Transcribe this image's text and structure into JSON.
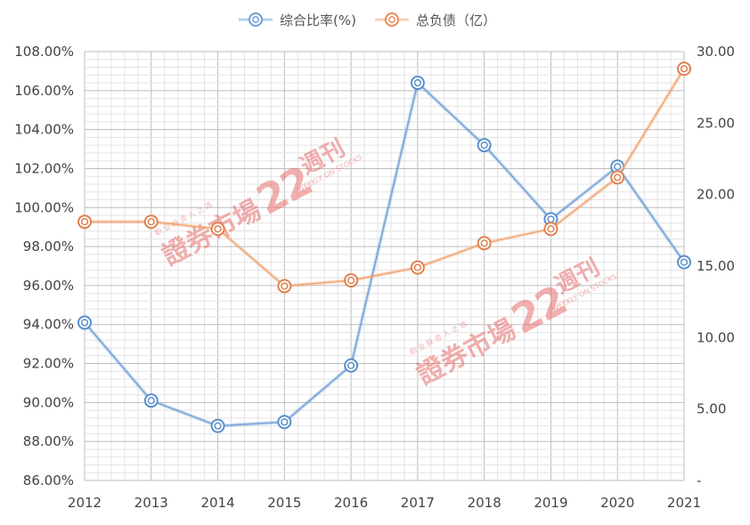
{
  "chart_data": {
    "type": "line",
    "categories": [
      "2012",
      "2013",
      "2014",
      "2015",
      "2016",
      "2017",
      "2018",
      "2019",
      "2020",
      "2021"
    ],
    "series": [
      {
        "name": "综合比率(%)",
        "axis": "left",
        "color": "#6e9fd6",
        "values": [
          94.1,
          90.1,
          88.8,
          89.0,
          91.9,
          106.4,
          103.2,
          99.4,
          102.1,
          97.2
        ]
      },
      {
        "name": "总负债（亿）",
        "axis": "right",
        "color": "#f0a36e",
        "values": [
          18.1,
          18.1,
          17.6,
          13.6,
          14.0,
          14.9,
          16.6,
          17.6,
          21.2,
          28.8
        ]
      }
    ],
    "y_left": {
      "range": [
        86,
        108
      ],
      "ticks": [
        "86.00%",
        "88.00%",
        "90.00%",
        "92.00%",
        "94.00%",
        "96.00%",
        "98.00%",
        "100.00%",
        "102.00%",
        "104.00%",
        "106.00%",
        "108.00%"
      ]
    },
    "y_right": {
      "range": [
        0,
        30
      ],
      "ticks": [
        "-",
        "5.00",
        "10.00",
        "15.00",
        "20.00",
        "25.00",
        "30.00"
      ]
    },
    "grid": true,
    "legend_position": "top-center"
  },
  "legend": {
    "series1": "综合比率(%)",
    "series2": "总负债（亿）"
  },
  "watermark": {
    "main": "證券市場",
    "suffix": "週刊",
    "tagline": "职业投资人之选",
    "english": "WEEKLY ON STOCKS"
  }
}
